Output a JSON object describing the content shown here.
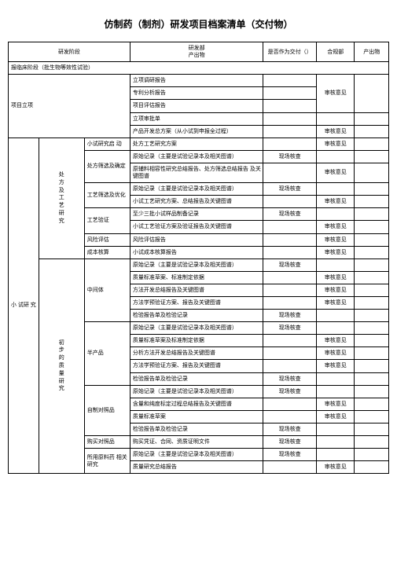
{
  "title": "仿制药（制剂）研发项目档案清单（交付物）",
  "header": {
    "stage": "研发阶段",
    "deliverableDept": "研发部",
    "deliverable": "产出物",
    "isDeliverable": "是否作为交付（）",
    "compliance": "合规部",
    "output": "产出物"
  },
  "sectionHeader": "报临床阶段（批生物等效性试验）",
  "groups": {
    "init": "项目立项",
    "pilot": "小 试研 究",
    "formulaV1": "处",
    "formulaV2": "方",
    "formulaV3": "及",
    "formulaV4": "工",
    "formulaV5": "艺",
    "formulaV6": "研",
    "formulaV7": "究",
    "prelimQV1": "初",
    "prelimQV2": "步",
    "prelimQV3": "的",
    "prelimQV4": "质",
    "prelimQV5": "量",
    "prelimQV6": "研",
    "prelimQV7": "究"
  },
  "sub": {
    "pilotStart": "小试研究启 动",
    "formulaSel": "处方筛选及确定",
    "processSel": "工艺筛选及优化",
    "processVal": "工艺验证",
    "riskEval": "风险评估",
    "costCalc": "成本核算",
    "intermediate": "中间体",
    "midProduct": "半产品",
    "selfRef": "自制对照品",
    "buyRef": "购买对照品",
    "raw": "所用原料药 相关研究"
  },
  "rows": {
    "r1": "立项调研报告",
    "r2": "专利分析报告",
    "r3": "项目评估报告",
    "r4": "立项审批单",
    "r5": "产品开发总方案（从小试到申报全过程）",
    "r6": "处方工艺研究方案",
    "r7": "原始记录（主要是试验记录本及相关图谱）",
    "r8": "原辅料相容性研究总结报告、处方筛选总结报告 及关键图谱",
    "r9": "原始记录（主要是试验记录本及相关图谱）",
    "r10": "小试工艺研究方案、总结报告及关键图谱",
    "r11": "至少三批小试样品制备记录",
    "r12": "小试工艺验证方案及验证报告及关键图谱",
    "r13": "风险评估报告",
    "r14": "小试成本核算报告",
    "r15": "原始记录（主要是试验记录本及相关图谱）",
    "r16": "质量标准草案、标准制定依据",
    "r17": "方法开发总结报告及关键图谱",
    "r18": "方法学预验证方案、报告及关键图谱",
    "r19": "检验报告单及检验记录",
    "r20": "原始记录（主要是试验记录本及相关图谱）",
    "r21": "质量标准草案及标准制定依据",
    "r22": "分析方法开发总结报告及关键图谱",
    "r23": "方法学预验证方案、报告及关键图谱",
    "r24": "检验报告单及检验记录",
    "r25": "原始记录（主要是试验记录本及相关图谱）",
    "r26": "含量和纯度标定过程总结报告及关键图谱",
    "r27": "质量标准草案",
    "r28": "检验报告单及检验记录",
    "r29": "购买凭证、合同、资质证明文件",
    "r30": "原始记录（主要是试验记录本及相关图谱）",
    "r31": "质量研究总结报告"
  },
  "vals": {
    "site": "现场核查",
    "audit": "审核意见"
  }
}
